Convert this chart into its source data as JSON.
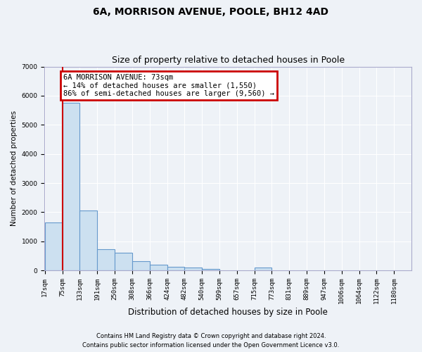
{
  "title_line1": "6A, MORRISON AVENUE, POOLE, BH12 4AD",
  "title_line2": "Size of property relative to detached houses in Poole",
  "xlabel": "Distribution of detached houses by size in Poole",
  "ylabel": "Number of detached properties",
  "bar_labels": [
    "17sqm",
    "75sqm",
    "133sqm",
    "191sqm",
    "250sqm",
    "308sqm",
    "366sqm",
    "424sqm",
    "482sqm",
    "540sqm",
    "599sqm",
    "657sqm",
    "715sqm",
    "773sqm",
    "831sqm",
    "889sqm",
    "947sqm",
    "1006sqm",
    "1064sqm",
    "1122sqm",
    "1180sqm"
  ],
  "bar_values": [
    1650,
    5750,
    2050,
    730,
    600,
    310,
    200,
    130,
    100,
    60,
    0,
    0,
    100,
    0,
    0,
    0,
    0,
    0,
    0,
    0,
    0
  ],
  "bar_color": "#cce0f0",
  "bar_edge_color": "#6699cc",
  "ylim": [
    0,
    7000
  ],
  "yticks": [
    0,
    1000,
    2000,
    3000,
    4000,
    5000,
    6000,
    7000
  ],
  "property_line_x": 1,
  "annotation_text": "6A MORRISON AVENUE: 73sqm\n← 14% of detached houses are smaller (1,550)\n86% of semi-detached houses are larger (9,560) →",
  "annotation_box_color": "#ffffff",
  "annotation_border_color": "#cc0000",
  "footer_line1": "Contains HM Land Registry data © Crown copyright and database right 2024.",
  "footer_line2": "Contains public sector information licensed under the Open Government Licence v3.0.",
  "background_color": "#eef2f7",
  "grid_color": "#ffffff",
  "title_fontsize": 10,
  "subtitle_fontsize": 9,
  "tick_fontsize": 6.5,
  "xlabel_fontsize": 8.5,
  "ylabel_fontsize": 7.5,
  "bin_width": 58,
  "n_bins": 21
}
